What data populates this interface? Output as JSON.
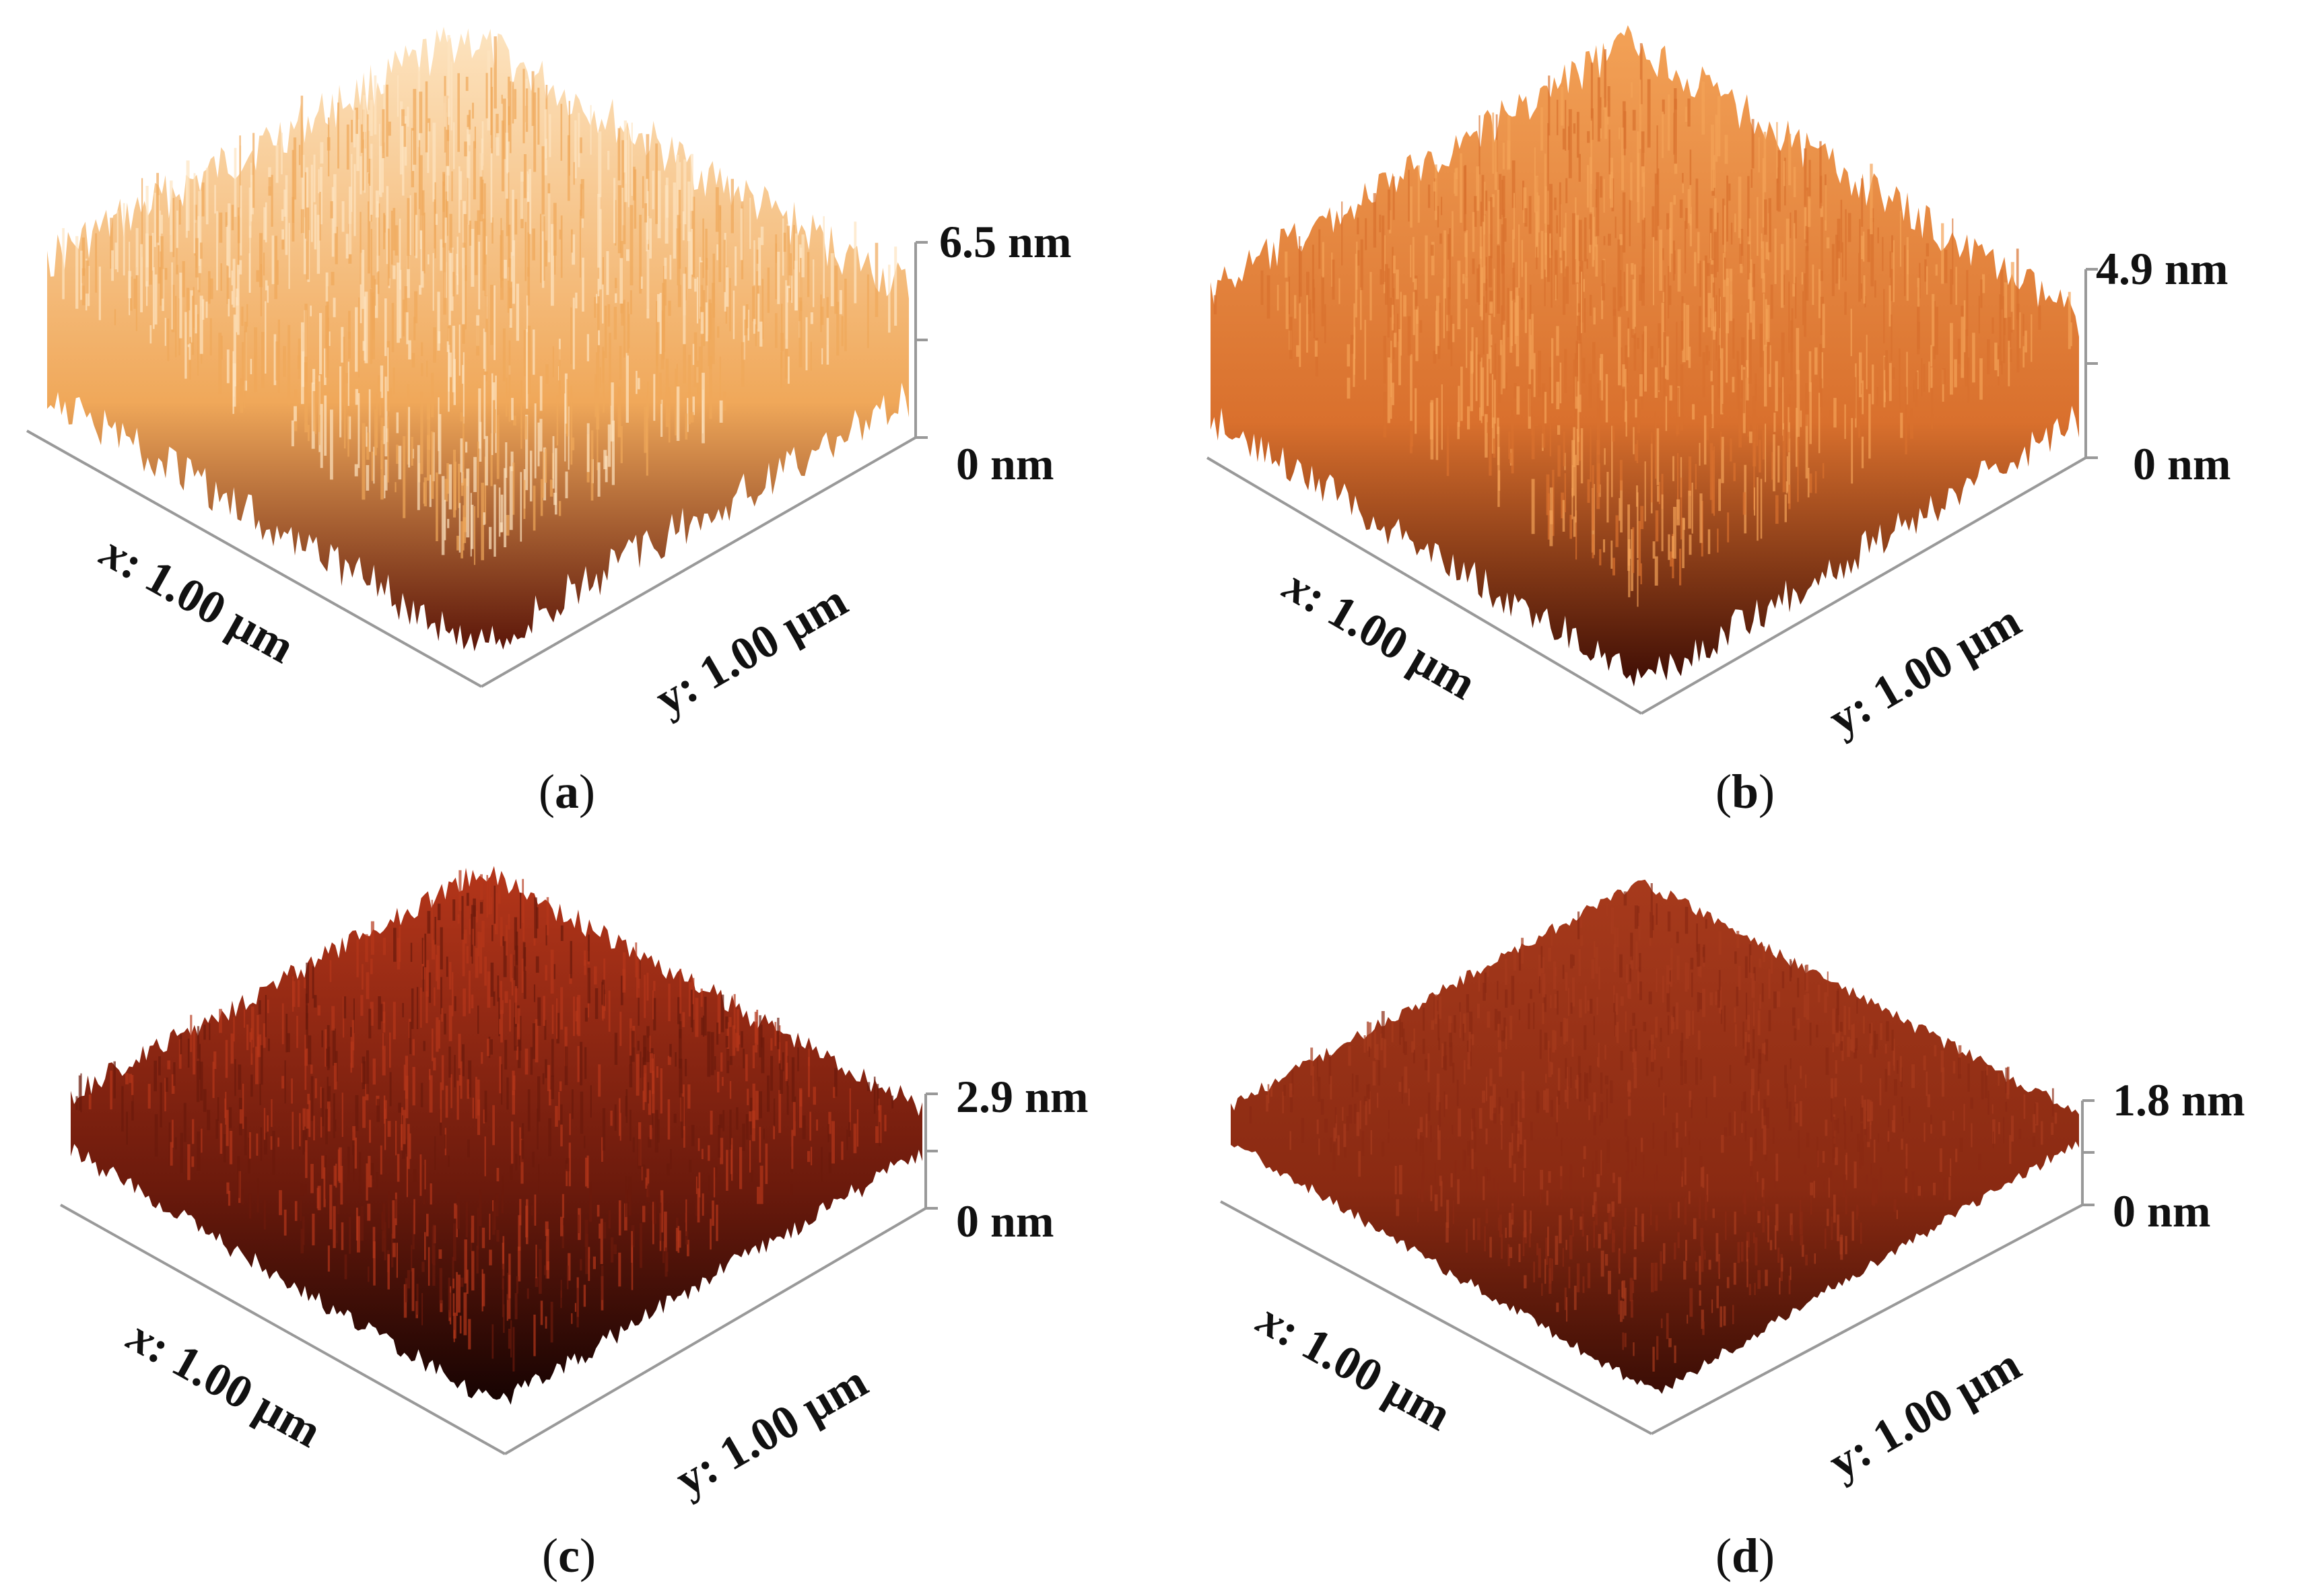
{
  "figure": {
    "panels": [
      {
        "id": "a",
        "label": "a",
        "z_max_label": "6.5 nm",
        "z_min_label": "0 nm",
        "x_axis_var": "x",
        "x_axis_value": ": 1.00  µm",
        "y_axis_var": "y",
        "y_axis_value": ": 1.00  µm",
        "colors": {
          "top": "#fde4c0",
          "mid": "#f0a85a",
          "base": "#5a1408"
        }
      },
      {
        "id": "b",
        "label": "b",
        "z_max_label": "4.9 nm",
        "z_min_label": "0 nm",
        "x_axis_var": "x",
        "x_axis_value": ": 1.00  µm",
        "y_axis_var": "y",
        "y_axis_value": ": 1.00  µm",
        "colors": {
          "top": "#f3a257",
          "mid": "#d9702d",
          "base": "#3d0c04"
        }
      },
      {
        "id": "c",
        "label": "c",
        "z_max_label": "2.9 nm",
        "z_min_label": "0 nm",
        "x_axis_var": "x",
        "x_axis_value": ": 1.00  µm",
        "y_axis_var": "y",
        "y_axis_value": ": 1.00  µm",
        "colors": {
          "top": "#b5361a",
          "mid": "#6b1a0c",
          "base": "#150302"
        }
      },
      {
        "id": "d",
        "label": "d",
        "z_max_label": "1.8 nm",
        "z_min_label": "0 nm",
        "x_axis_var": "x",
        "x_axis_value": ": 1.00  µm",
        "y_axis_var": "y",
        "y_axis_value": ": 1.00  µm",
        "colors": {
          "top": "#a73a1c",
          "mid": "#8a2a12",
          "base": "#3a0d05"
        }
      }
    ]
  }
}
